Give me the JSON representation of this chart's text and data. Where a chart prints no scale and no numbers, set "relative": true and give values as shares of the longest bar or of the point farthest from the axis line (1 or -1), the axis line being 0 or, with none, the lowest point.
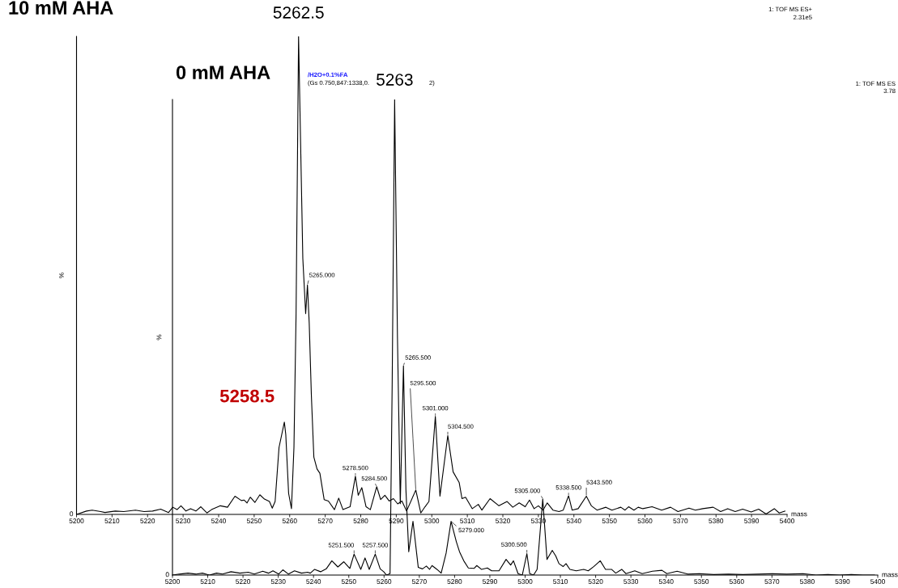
{
  "chart_data": [
    {
      "type": "line",
      "title": "10 mM AHA",
      "xlabel": "mass",
      "ylabel": "%",
      "relative": true,
      "color": "#000000",
      "xlim": [
        5200,
        5400
      ],
      "xticks": [
        5200,
        5210,
        5220,
        5230,
        5240,
        5250,
        5260,
        5270,
        5280,
        5290,
        5300,
        5310,
        5320,
        5330,
        5340,
        5350,
        5360,
        5370,
        5380,
        5390,
        5400
      ],
      "x": [
        5200,
        5202.8,
        5204.4,
        5206.8,
        5208,
        5210.9,
        5213.3,
        5216.6,
        5219,
        5221.4,
        5223.7,
        5225.9,
        5227.1,
        5228.3,
        5229.4,
        5230.8,
        5232.1,
        5233.6,
        5235,
        5236.7,
        5238,
        5240.5,
        5242.5,
        5244.6,
        5246.4,
        5247.2,
        5248,
        5248.9,
        5250.2,
        5251.6,
        5252.9,
        5254.3,
        5255.1,
        5255.9,
        5257,
        5258.5,
        5258.9,
        5259.7,
        5260.5,
        5261.2,
        5261.8,
        5262.5,
        5263.7,
        5264.5,
        5265,
        5265.5,
        5266.1,
        5266.8,
        5267.7,
        5268.5,
        5269.7,
        5270.9,
        5272.6,
        5273.8,
        5275,
        5277,
        5278.5,
        5279.3,
        5280.3,
        5281.5,
        5282.7,
        5284.5,
        5285.6,
        5286.8,
        5288,
        5289.2,
        5290.4,
        5291.6,
        5292.9,
        5295.5,
        5296.9,
        5298.1,
        5299.2,
        5301,
        5302.3,
        5304.5,
        5306,
        5307.7,
        5308.5,
        5309.5,
        5311.4,
        5313.1,
        5314.1,
        5316.4,
        5318.9,
        5321.2,
        5322.8,
        5324.6,
        5326.3,
        5327.5,
        5328.8,
        5330,
        5331.3,
        5332.5,
        5334.1,
        5335.8,
        5337,
        5338.5,
        5339.5,
        5341.2,
        5343.5,
        5344.9,
        5346.5,
        5349,
        5350.7,
        5353.2,
        5354.4,
        5355.4,
        5356.9,
        5358.1,
        5359.4,
        5362,
        5364.7,
        5367.2,
        5369.3,
        5372.4,
        5374.2,
        5376.3,
        5379.2,
        5381.3,
        5383.3,
        5385.4,
        5387.5,
        5389.9,
        5392,
        5394.1,
        5396.4,
        5397.8,
        5399.4
      ],
      "values": [
        0,
        0.007,
        0.009,
        0.006,
        0.004,
        0.007,
        0.006,
        0.009,
        0.006,
        0.007,
        0.011,
        0.004,
        0.015,
        0.01,
        0.018,
        0.007,
        0.012,
        0.007,
        0.016,
        0.003,
        0.01,
        0.018,
        0.015,
        0.038,
        0.029,
        0.03,
        0.024,
        0.036,
        0.025,
        0.041,
        0.032,
        0.027,
        0.013,
        0.027,
        0.14,
        0.193,
        0.167,
        0.044,
        0.012,
        0.14,
        0.42,
        1,
        0.535,
        0.42,
        0.48,
        0.4,
        0.25,
        0.12,
        0.095,
        0.086,
        0.031,
        0.028,
        0.01,
        0.034,
        0.01,
        0.016,
        0.08,
        0.04,
        0.056,
        0.016,
        0.01,
        0.058,
        0.031,
        0.04,
        0.028,
        0.033,
        0.022,
        0.028,
        0.007,
        0.051,
        0.003,
        0.016,
        0.027,
        0.205,
        0.038,
        0.165,
        0.089,
        0.067,
        0.033,
        0.036,
        0.012,
        0.021,
        0.009,
        0.033,
        0.018,
        0.027,
        0.015,
        0.024,
        0.016,
        0.03,
        0.012,
        0.018,
        0.009,
        0.024,
        0.009,
        0.006,
        0.009,
        0.039,
        0.009,
        0.012,
        0.038,
        0.018,
        0.009,
        0.015,
        0.009,
        0.015,
        0.009,
        0.016,
        0.009,
        0.015,
        0.012,
        0.016,
        0.009,
        0.015,
        0.006,
        0.013,
        0.009,
        0.012,
        0.015,
        0.006,
        0.012,
        0.006,
        0.011,
        0.005,
        0.011,
        0.001,
        0.012,
        0.003,
        0.007
      ],
      "annotations": [
        {
          "text": "5262.5",
          "x": 5262.5,
          "y": 1
        },
        {
          "text": "5258.5",
          "x": 5258.5,
          "y": 0.193
        },
        {
          "text": "5265.000",
          "x": 5265,
          "y": 0.48
        },
        {
          "text": "5278.500",
          "x": 5278.5,
          "y": 0.08
        },
        {
          "text": "5284.500",
          "x": 5284.5,
          "y": 0.058
        },
        {
          "text": "5295.500",
          "x": 5295.5,
          "y": 0.051
        },
        {
          "text": "5301.000",
          "x": 5301,
          "y": 0.205
        },
        {
          "text": "5304.500",
          "x": 5304.5,
          "y": 0.165
        },
        {
          "text": "5338.500",
          "x": 5338.5,
          "y": 0.039
        },
        {
          "text": "5343.500",
          "x": 5343.5,
          "y": 0.038
        },
        "0",
        "1: TOF MS ES+",
        "2.31e5"
      ]
    },
    {
      "type": "line",
      "title": "0 mM AHA",
      "xlabel": "mass",
      "ylabel": "%",
      "relative": true,
      "color": "#000000",
      "xlim": [
        5200,
        5400
      ],
      "xticks": [
        5200,
        5210,
        5220,
        5230,
        5240,
        5250,
        5260,
        5270,
        5280,
        5290,
        5300,
        5310,
        5320,
        5330,
        5340,
        5350,
        5360,
        5370,
        5380,
        5390,
        5400
      ],
      "x": [
        5200,
        5201.9,
        5204.4,
        5206.8,
        5208.5,
        5210.5,
        5212.5,
        5214.2,
        5216.6,
        5219.1,
        5221.5,
        5223.2,
        5225.6,
        5227.2,
        5228.5,
        5230.1,
        5231.3,
        5232.9,
        5234.6,
        5236.6,
        5238.3,
        5239.1,
        5240.3,
        5242,
        5243.6,
        5245.2,
        5246.9,
        5248.6,
        5250.3,
        5251.5,
        5253.4,
        5254.6,
        5255.8,
        5257.5,
        5258.9,
        5259.9,
        5260.7,
        5261.7,
        5262.3,
        5263,
        5263.8,
        5264.6,
        5265.5,
        5266.2,
        5267,
        5268.2,
        5269.7,
        5270.9,
        5272,
        5272.9,
        5273.6,
        5275,
        5276.2,
        5277.6,
        5279,
        5280.5,
        5281.4,
        5282.6,
        5283.9,
        5285.5,
        5286.3,
        5287.6,
        5289.3,
        5290.5,
        5292.6,
        5294.6,
        5295.9,
        5296.7,
        5298,
        5299.2,
        5300.5,
        5301.3,
        5302.4,
        5303.4,
        5305,
        5306.2,
        5307.7,
        5308.7,
        5309.6,
        5310.8,
        5311.6,
        5312.7,
        5314.5,
        5316.6,
        5317.9,
        5319.5,
        5321.3,
        5322.8,
        5324.5,
        5325.7,
        5327.4,
        5328.6,
        5331.1,
        5333.2,
        5336.1,
        5338.8,
        5340.2,
        5343.1,
        5346.1,
        5349.4,
        5353.5,
        5357.7,
        5361.8,
        5366,
        5370.1,
        5374.2,
        5378.8,
        5382.5,
        5385.9,
        5389.2,
        5392.5,
        5395.8,
        5399.1
      ],
      "values": [
        0,
        0.002,
        0.004,
        0.002,
        0.004,
        0,
        0.004,
        0.002,
        0.007,
        0.004,
        0.006,
        0.002,
        0.008,
        0.004,
        0.009,
        0.002,
        0.011,
        0.002,
        0.009,
        0.004,
        0.006,
        0.004,
        0.012,
        0.007,
        0.013,
        0.03,
        0.017,
        0.028,
        0.014,
        0.044,
        0.012,
        0.036,
        0.012,
        0.044,
        0.013,
        0.007,
        0,
        0.003,
        0.4,
        1,
        0.5,
        0.15,
        0.44,
        0.18,
        0.049,
        0.113,
        0.016,
        0.013,
        0.019,
        0.012,
        0.02,
        0.012,
        0.004,
        0.046,
        0.113,
        0.07,
        0.049,
        0.03,
        0.015,
        0.014,
        0.02,
        0.012,
        0.015,
        0.009,
        0.009,
        0.033,
        0.021,
        0.03,
        0.003,
        0,
        0.045,
        0.003,
        0,
        0.012,
        0.16,
        0.033,
        0.052,
        0.04,
        0.024,
        0.018,
        0.024,
        0.012,
        0.009,
        0.012,
        0.009,
        0.018,
        0.03,
        0.012,
        0.012,
        0.004,
        0.012,
        0.003,
        0.009,
        0.003,
        0.008,
        0.01,
        0.003,
        0.008,
        0.002,
        0.003,
        0.001,
        0.002,
        0.001,
        0.002,
        0.003,
        0.002,
        0.003,
        0,
        0.001,
        0,
        0.001,
        0,
        0
      ],
      "annotations": [
        {
          "text": "5263",
          "x": 5263,
          "y": 1
        },
        {
          "text": "5265.500",
          "x": 5265.5,
          "y": 0.44
        },
        {
          "text": "5251.500",
          "x": 5251.5,
          "y": 0.044
        },
        {
          "text": "5257.500",
          "x": 5257.5,
          "y": 0.044
        },
        {
          "text": "5279.000",
          "x": 5279,
          "y": 0.113
        },
        {
          "text": "5300.500",
          "x": 5300.5,
          "y": 0.045
        },
        {
          "text": "5305.000",
          "x": 5305,
          "y": 0.16
        },
        "0",
        "/H2O+0.1%FA",
        "(Gs 0.750,847:1338,0.",
        "2)",
        "1: TOF MS ES",
        "3.78"
      ]
    }
  ]
}
